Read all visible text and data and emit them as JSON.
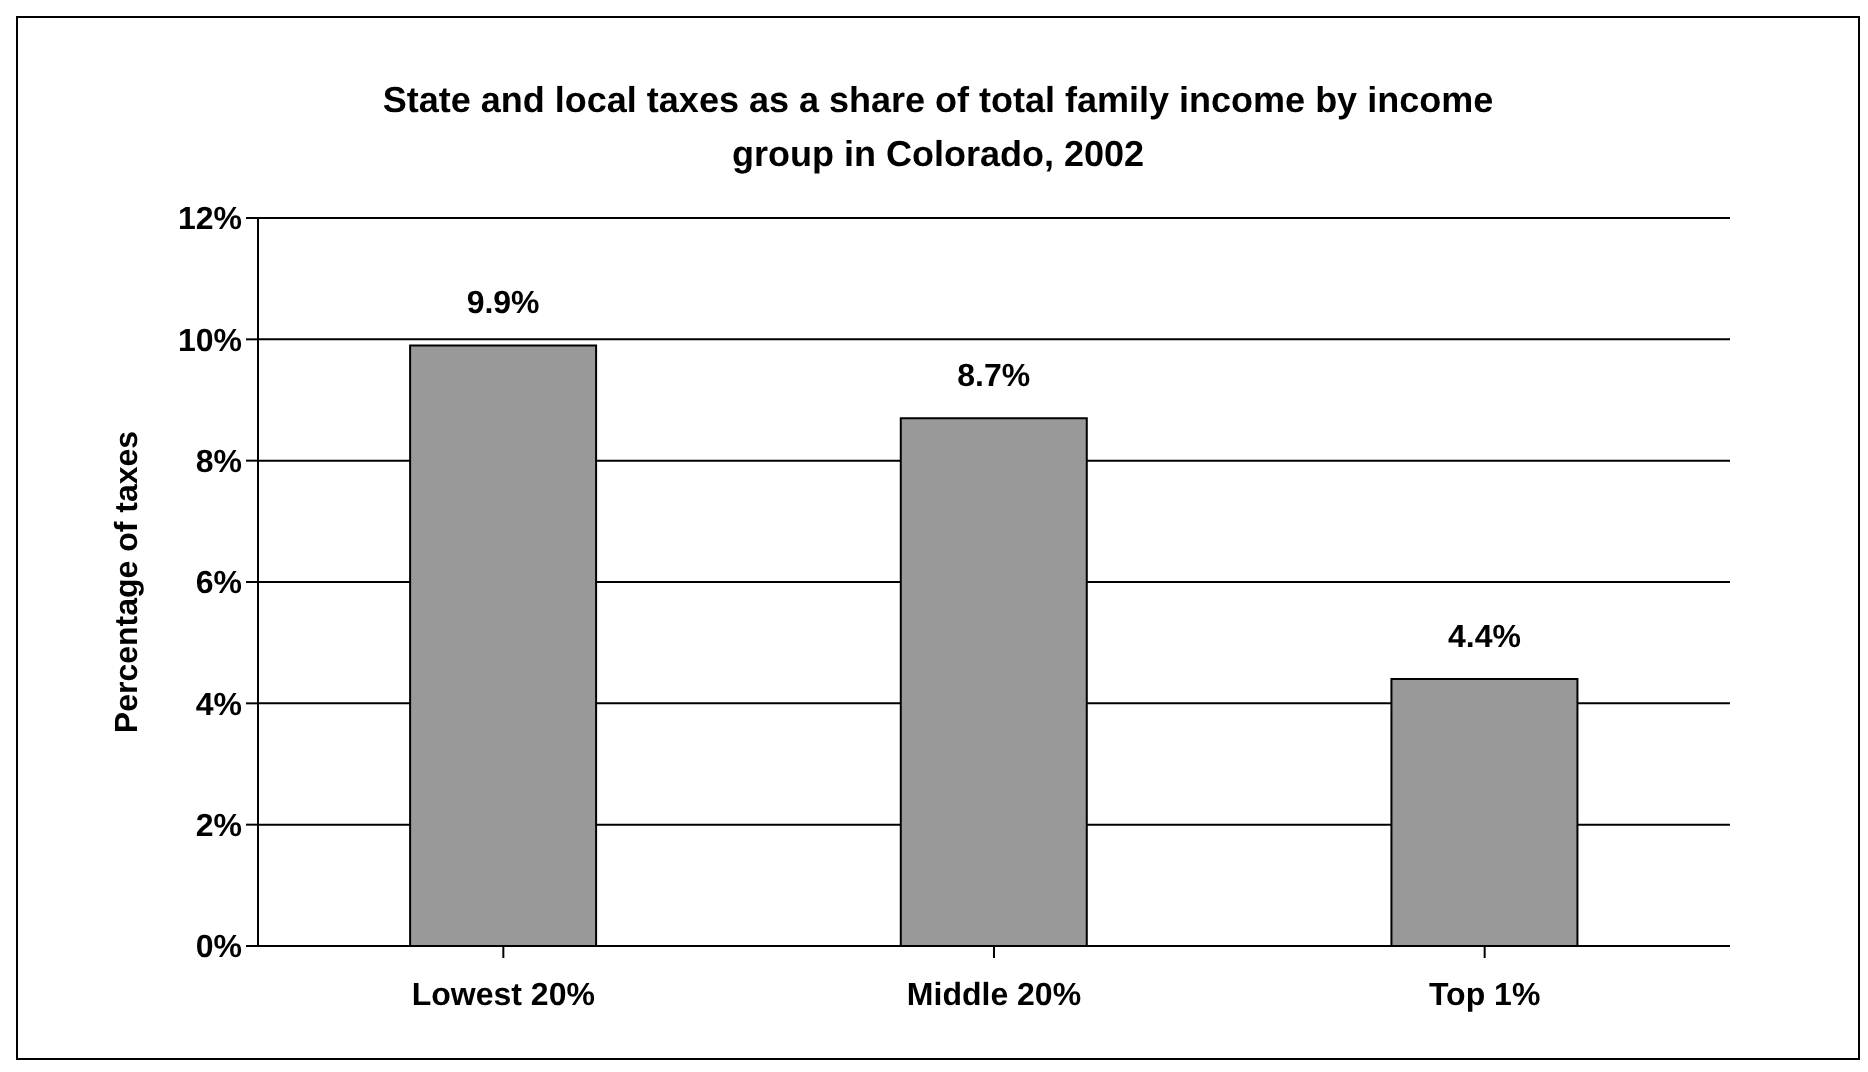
{
  "chart_data": {
    "type": "bar",
    "title": "State and local taxes as a share of total family income by income group in Colorado, 2002",
    "ylabel": "Percentage of taxes",
    "categories": [
      "Lowest 20%",
      "Middle 20%",
      "Top 1%"
    ],
    "values": [
      9.9,
      8.7,
      4.4
    ],
    "value_labels": [
      "9.9%",
      "8.7%",
      "4.4%"
    ],
    "color": "#999999",
    "ylim": [
      0,
      12
    ],
    "yticks": [
      {
        "value": 0,
        "label": "0%"
      },
      {
        "value": 2,
        "label": "2%"
      },
      {
        "value": 4,
        "label": "4%"
      },
      {
        "value": 6,
        "label": "6%"
      },
      {
        "value": 8,
        "label": "8%"
      },
      {
        "value": 10,
        "label": "10%"
      },
      {
        "value": 12,
        "label": "12%"
      }
    ],
    "grid": "y",
    "legend": false
  }
}
